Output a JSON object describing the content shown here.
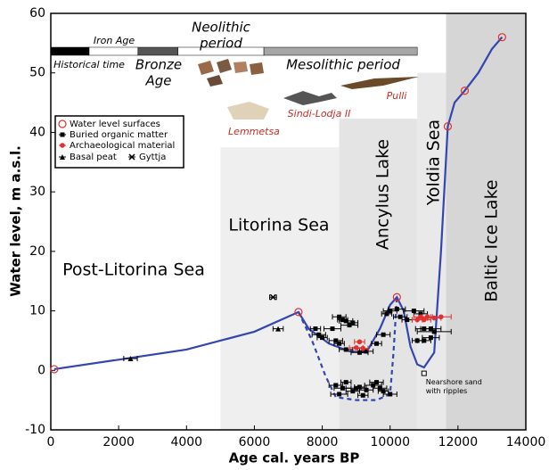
{
  "chart_data": {
    "type": "scatter",
    "xlabel": "Age cal. years BP",
    "ylabel": "Water level, m a.s.l.",
    "xlim": [
      0,
      14000
    ],
    "ylim": [
      -10,
      60
    ],
    "xticks": [
      0,
      2000,
      4000,
      6000,
      8000,
      10000,
      12000,
      14000
    ],
    "yticks": [
      -10,
      0,
      10,
      20,
      30,
      40,
      50,
      60
    ],
    "zones": [
      {
        "name": "Post-Litorina Sea",
        "x0": 0,
        "x1": 5000,
        "top": 0,
        "color": "#ffffff"
      },
      {
        "name": "Litorina Sea",
        "x0": 5000,
        "x1": 8500,
        "top": 37.5,
        "color": "#efefef"
      },
      {
        "name": "Ancylus Lake",
        "x0": 8500,
        "x1": 10800,
        "top": 42.3,
        "color": "#e4e4e4"
      },
      {
        "name": "Yoldia Sea",
        "x0": 10800,
        "x1": 11650,
        "top": 50,
        "color": "#e9e9e9"
      },
      {
        "name": "Baltic Ice Lake",
        "x0": 11650,
        "x1": 14000,
        "top": 60,
        "color": "#d6d6d6"
      }
    ],
    "timeline": [
      {
        "x0": 0,
        "x1": 1130,
        "color": "#000000"
      },
      {
        "x0": 1130,
        "x1": 2570,
        "color": "#ffffff"
      },
      {
        "x0": 2570,
        "x1": 3750,
        "color": "#555555"
      },
      {
        "x0": 3750,
        "x1": 6280,
        "color": "#ffffff"
      },
      {
        "x0": 6280,
        "x1": 10800,
        "color": "#a6a6a6"
      }
    ],
    "periods": [
      "Historical time",
      "Iron Age",
      [
        "Bronze",
        "Age"
      ],
      [
        "Neolithic",
        "period"
      ],
      "Mesolithic period"
    ],
    "artifacts": [
      "Lemmetsa",
      "Sindi-Lodja II",
      "Pulli"
    ],
    "lines": [
      {
        "color": "#3346b0",
        "dash": false,
        "x": [
          100,
          2000,
          4000,
          6000,
          7300,
          7600,
          8200,
          8800,
          9300,
          9700,
          10000,
          10200,
          10400,
          10600,
          10800,
          11000,
          11300,
          11500,
          11700,
          11900,
          12200,
          12600,
          13000,
          13300
        ],
        "y": [
          0.2,
          1.8,
          3.5,
          6.5,
          9.8,
          7,
          4.5,
          3.2,
          3,
          7,
          11,
          12.3,
          10,
          4,
          1,
          0.5,
          3,
          20,
          41,
          45,
          47,
          50,
          54,
          56
        ]
      },
      {
        "color": "#3346b0",
        "dash": true,
        "x": [
          7300,
          7700,
          8100,
          8400,
          9000,
          9600,
          10000,
          10100,
          10200
        ],
        "y": [
          9.8,
          5,
          -1,
          -4.5,
          -5,
          -5,
          -4,
          3,
          12.3
        ]
      }
    ],
    "series": [
      {
        "name": "Water level surfaces",
        "color": "#e03030",
        "marker": "open-circle",
        "x": [
          100,
          7300,
          10200,
          11700,
          12200,
          13300
        ],
        "y": [
          0.2,
          9.8,
          12.3,
          41,
          47,
          56
        ]
      },
      {
        "name": "Buried organic matter",
        "color": "#000000",
        "marker": "square",
        "x": [
          7800,
          7900,
          8000,
          8300,
          8500,
          8600,
          8700,
          8800,
          8900,
          8400,
          8500,
          8700,
          9100,
          9300,
          9600,
          9800,
          9900,
          10000,
          10200,
          10300,
          10500,
          10700,
          10900,
          11000,
          11200,
          11300,
          11000,
          11200,
          10800,
          8400,
          8600,
          8700,
          8900,
          9000,
          9100,
          9300,
          9500,
          9700,
          9800,
          10000,
          8500,
          9200,
          9600
        ],
        "y": [
          7,
          6,
          5.5,
          7,
          9,
          8.5,
          8.3,
          7.6,
          8,
          5,
          4.5,
          3.5,
          3,
          3.2,
          4.5,
          6,
          9.5,
          10,
          10.3,
          9,
          8.5,
          10,
          9.5,
          7,
          7,
          6.5,
          5,
          5.5,
          5,
          -2.5,
          -3,
          -2,
          -3.5,
          -3,
          -2.8,
          -3.3,
          -2.5,
          -3,
          -3.5,
          -4,
          -4,
          -4.2,
          -2
        ],
        "xerr": [
          150,
          200,
          150,
          250,
          200,
          150,
          200,
          250,
          150,
          200,
          150,
          200,
          250,
          200,
          150,
          200,
          150,
          200,
          250,
          200,
          150,
          300,
          200,
          250,
          300,
          500,
          200,
          250,
          150,
          200,
          250,
          150,
          200,
          300,
          150,
          200,
          250,
          200,
          150,
          200,
          250,
          150,
          200
        ]
      },
      {
        "name": "Archaeological material",
        "color": "#e03030",
        "marker": "dot",
        "x": [
          9000,
          9200,
          9100,
          10900,
          11100,
          11300,
          11500,
          10800,
          11000
        ],
        "y": [
          3.8,
          3.7,
          4.8,
          9,
          9,
          8.8,
          9,
          8.5,
          8.5
        ],
        "xerr": [
          200,
          150,
          150,
          200,
          150,
          200,
          300,
          150,
          200
        ]
      },
      {
        "name": "Basal peat",
        "color": "#000000",
        "marker": "peat",
        "x": [
          2350,
          6700
        ],
        "y": [
          2,
          7
        ],
        "xerr": [
          200,
          150
        ]
      },
      {
        "name": "Gyttja",
        "color": "#000000",
        "marker": "gyttja",
        "x": [
          6550
        ],
        "y": [
          12.3
        ],
        "xerr": [
          100
        ]
      }
    ],
    "annotation": {
      "text": [
        "Nearshore sand",
        "with ripples"
      ],
      "x": 11000,
      "y": -0.5
    }
  }
}
